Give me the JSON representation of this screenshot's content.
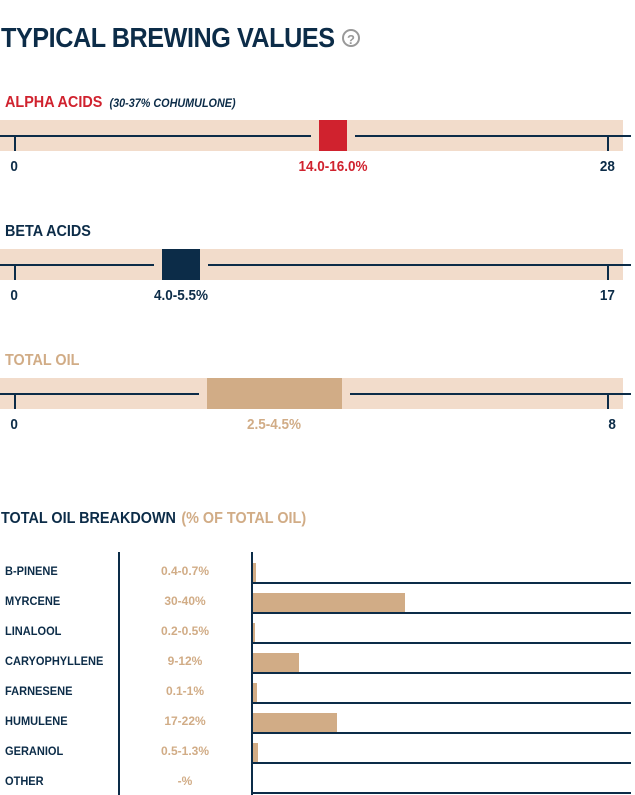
{
  "title": "TYPICAL BREWING VALUES",
  "help_icon": "?",
  "colors": {
    "navy": "#0c2c48",
    "red": "#d0222e",
    "tan": "#d1ac86",
    "band": "#f2dccb"
  },
  "chart_data": [
    {
      "type": "range",
      "name": "ALPHA ACIDS",
      "note": "(30-37% COHUMULONE)",
      "min": 0,
      "max": 28,
      "low": 14.0,
      "high": 16.0,
      "min_label": "0",
      "max_label": "28",
      "range_label": "14.0-16.0%",
      "color": "#d0222e",
      "label_color": "#d0222e"
    },
    {
      "type": "range",
      "name": "BETA ACIDS",
      "note": "",
      "min": 0,
      "max": 17,
      "low": 4.0,
      "high": 5.5,
      "min_label": "0",
      "max_label": "17",
      "range_label": "4.0-5.5%",
      "color": "#0c2c48",
      "label_color": "#0c2c48"
    },
    {
      "type": "range",
      "name": "TOTAL OIL",
      "note": "",
      "min": 0,
      "max": 8,
      "low": 2.5,
      "high": 4.5,
      "min_label": "0",
      "max_label": "8",
      "range_label": "2.5-4.5%",
      "color": "#d1ac86",
      "label_color": "#d1ac86"
    },
    {
      "type": "bar",
      "title": "TOTAL OIL BREAKDOWN",
      "subtitle": "(% OF TOTAL OIL)",
      "xlim": [
        0,
        100
      ],
      "categories": [
        "B-PINENE",
        "MYRCENE",
        "LINALOOL",
        "CARYOPHYLLENE",
        "FARNESENE",
        "HUMULENE",
        "GERANIOL",
        "OTHER"
      ],
      "labels": [
        "0.4-0.7%",
        "30-40%",
        "0.2-0.5%",
        "9-12%",
        "0.1-1%",
        "17-22%",
        "0.5-1.3%",
        "-%"
      ],
      "values": [
        0.7,
        40,
        0.5,
        12,
        1,
        22,
        1.3,
        0
      ]
    }
  ]
}
